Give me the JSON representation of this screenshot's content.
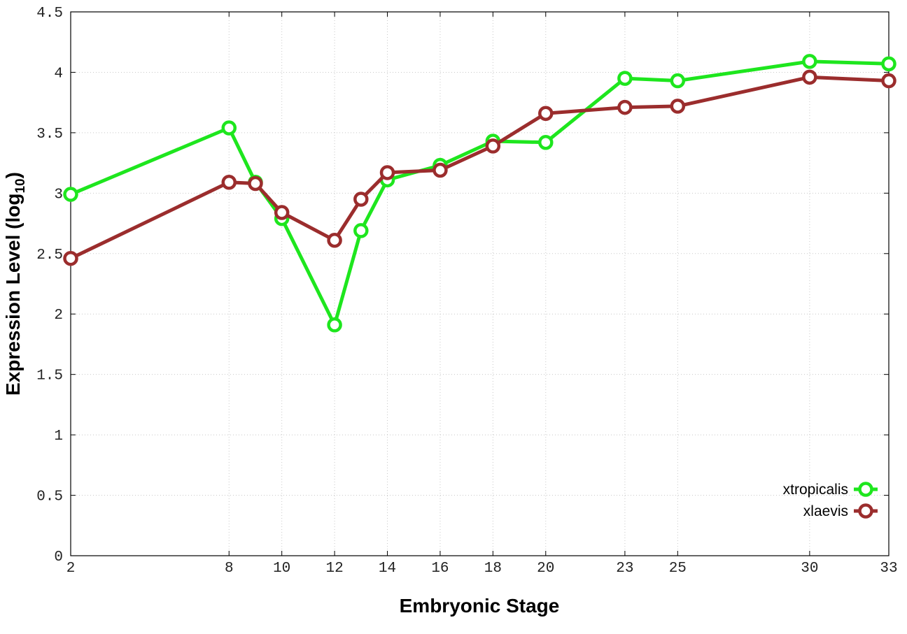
{
  "chart_data": {
    "type": "line",
    "title": "",
    "xlabel": "Embryonic Stage",
    "ylabel": "Expression Level (log",
    "ylabel_subscript": "10",
    "ylabel_close": ")",
    "x": [
      2,
      8,
      9,
      10,
      12,
      13,
      14,
      16,
      18,
      20,
      23,
      25,
      30,
      33
    ],
    "x_ticks": [
      2,
      8,
      10,
      12,
      14,
      16,
      18,
      20,
      23,
      25,
      30,
      33
    ],
    "x_tick_labels": [
      "2",
      "8",
      "10",
      "12",
      "14",
      "16",
      "18",
      "20",
      "23",
      "25",
      "30",
      "33"
    ],
    "y_ticks": [
      0,
      0.5,
      1,
      1.5,
      2,
      2.5,
      3,
      3.5,
      4,
      4.5
    ],
    "y_tick_labels": [
      "0",
      "0.5",
      "1",
      "1.5",
      "2",
      "2.5",
      "3",
      "3.5",
      "4",
      "4.5"
    ],
    "xlim": [
      2,
      33
    ],
    "ylim": [
      0,
      4.5
    ],
    "grid": true,
    "legend_position": "bottom-right",
    "series": [
      {
        "name": "xtropicalis",
        "color": "#1ee61e",
        "marker": "open-circle",
        "values": [
          2.99,
          3.54,
          3.09,
          2.79,
          1.91,
          2.69,
          3.11,
          3.23,
          3.43,
          3.42,
          3.95,
          3.93,
          4.09,
          4.07
        ]
      },
      {
        "name": "xlaevis",
        "color": "#9b2d2d",
        "marker": "open-circle",
        "values": [
          2.46,
          3.09,
          3.08,
          2.84,
          2.61,
          2.95,
          3.17,
          3.19,
          3.39,
          3.66,
          3.71,
          3.72,
          3.96,
          3.93
        ]
      }
    ]
  }
}
